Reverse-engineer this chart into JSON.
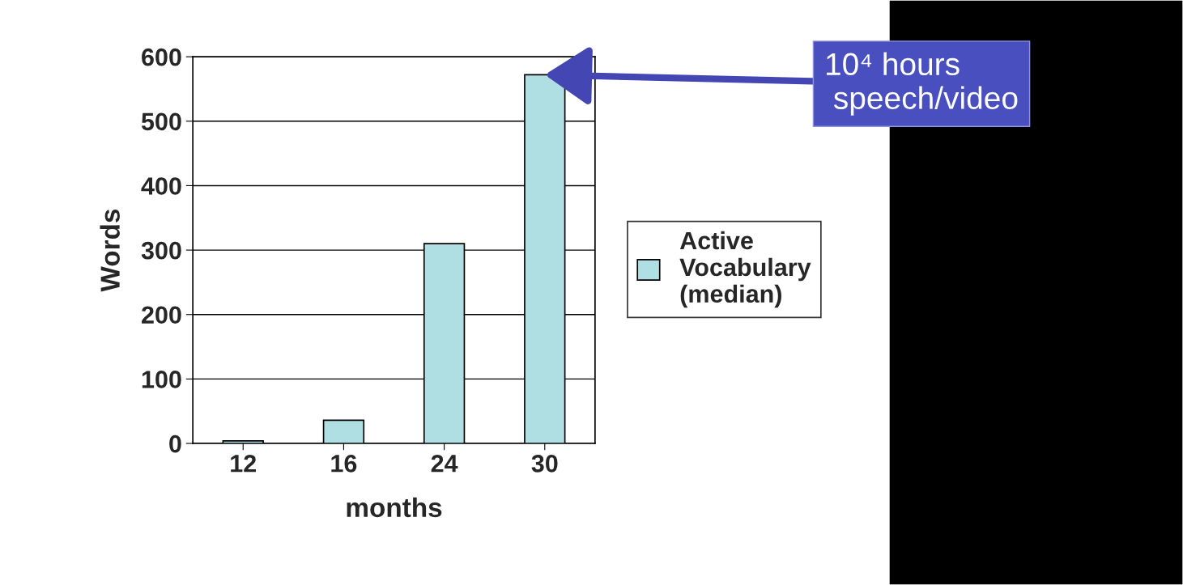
{
  "chart_data": {
    "type": "bar",
    "xlabel": "months",
    "ylabel": "Words",
    "categories": [
      "12",
      "16",
      "24",
      "30"
    ],
    "series": [
      {
        "name": "Active\nVocabulary\n(median)",
        "color": "#b0dfe3",
        "values": [
          4,
          36,
          310,
          572
        ]
      }
    ],
    "ylim": [
      0,
      600
    ],
    "yticks": [
      0,
      100,
      200,
      300,
      400,
      500,
      600
    ],
    "grid": "y",
    "legend": "right",
    "annotations": [
      {
        "text": "10⁴ hours\n speech/video",
        "x": "30",
        "y": 572
      }
    ]
  }
}
